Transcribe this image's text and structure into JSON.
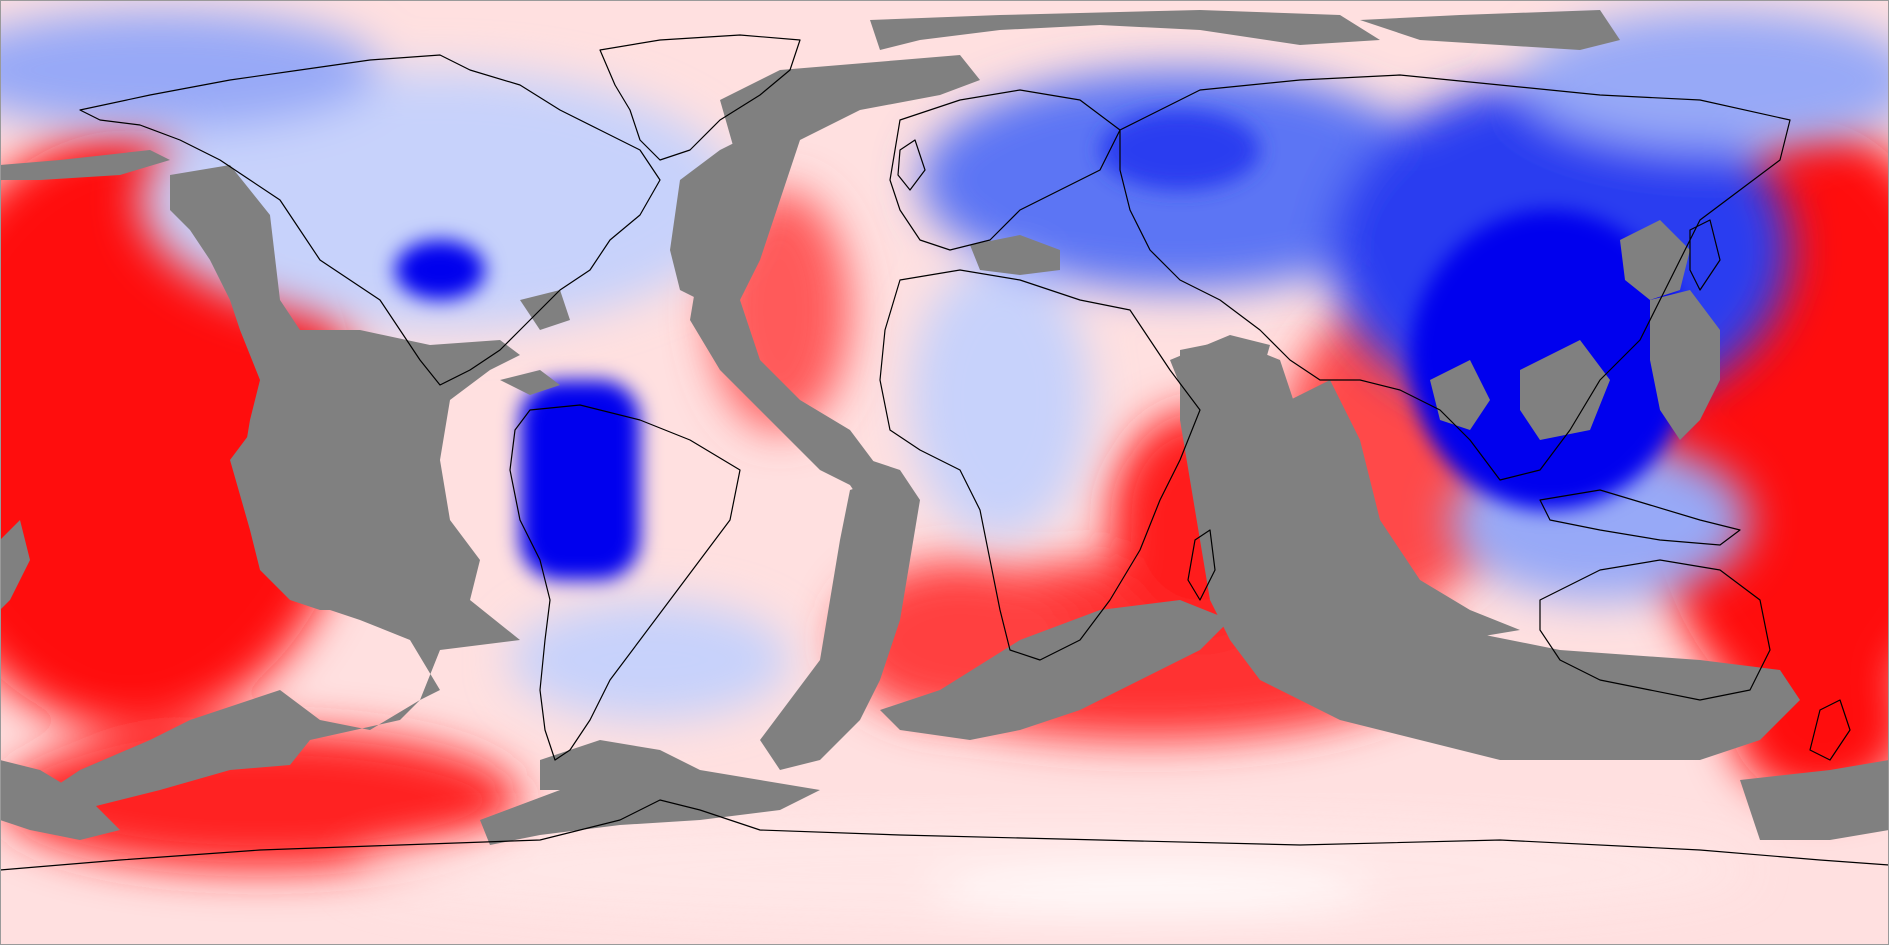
{
  "map": {
    "projection": "equirectangular",
    "legend": "",
    "colors": {
      "masked": "#808080",
      "ocean_positive": "#ff0d0d",
      "strong_negative": "#0000ee",
      "neutral": "#ffffff",
      "coastline": "#000000"
    },
    "field_palette": [
      "#0000ee",
      "#2a3cf0",
      "#5c74f4",
      "#97a9f7",
      "#c7d2fb",
      "#e8edfd",
      "#ffffff",
      "#ffe6e6",
      "#ffc4c4",
      "#ff9a9a",
      "#ff6a6a",
      "#ff3c3c",
      "#ff0d0d"
    ]
  }
}
